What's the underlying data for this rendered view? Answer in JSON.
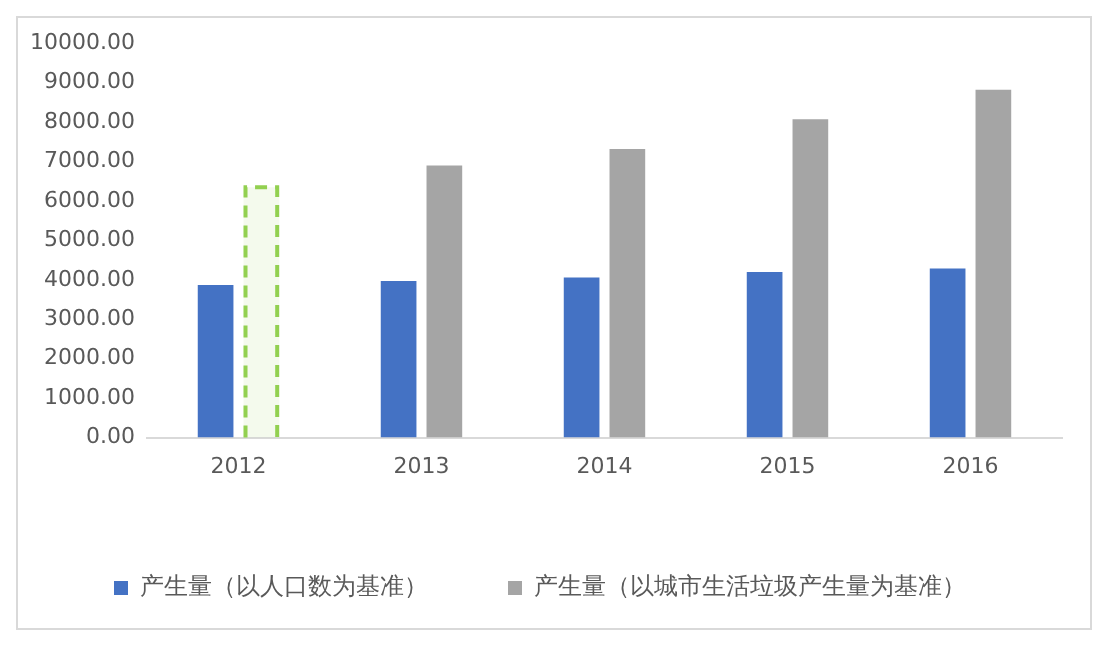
{
  "chart_data": {
    "type": "bar",
    "categories": [
      "2012",
      "2013",
      "2014",
      "2015",
      "2016"
    ],
    "series": [
      {
        "name": "产生量（以人口数为基准）",
        "color": "#4472c4",
        "values": [
          3870,
          3970,
          4060,
          4200,
          4290
        ]
      },
      {
        "name": "产生量（以城市生活垃圾产生量为基准）",
        "color": "#a5a5a5",
        "values": [
          null,
          6900,
          7320,
          8070,
          8820
        ]
      },
      {
        "color": "#92d050",
        "line_style": "dashed",
        "values": [
          6350,
          null,
          null,
          null,
          null
        ]
      }
    ],
    "ylim": [
      0,
      10000
    ],
    "yticks": [
      {
        "value": 0,
        "label": "0.00"
      },
      {
        "value": 1000,
        "label": "1000.00"
      },
      {
        "value": 2000,
        "label": "2000.00"
      },
      {
        "value": 3000,
        "label": "3000.00"
      },
      {
        "value": 4000,
        "label": "4000.00"
      },
      {
        "value": 5000,
        "label": "5000.00"
      },
      {
        "value": 6000,
        "label": "6000.00"
      },
      {
        "value": 7000,
        "label": "7000.00"
      },
      {
        "value": 8000,
        "label": "8000.00"
      },
      {
        "value": 9000,
        "label": "9000.00"
      },
      {
        "value": 10000,
        "label": "10000.00"
      }
    ],
    "grid": false,
    "legend": "bottom"
  }
}
